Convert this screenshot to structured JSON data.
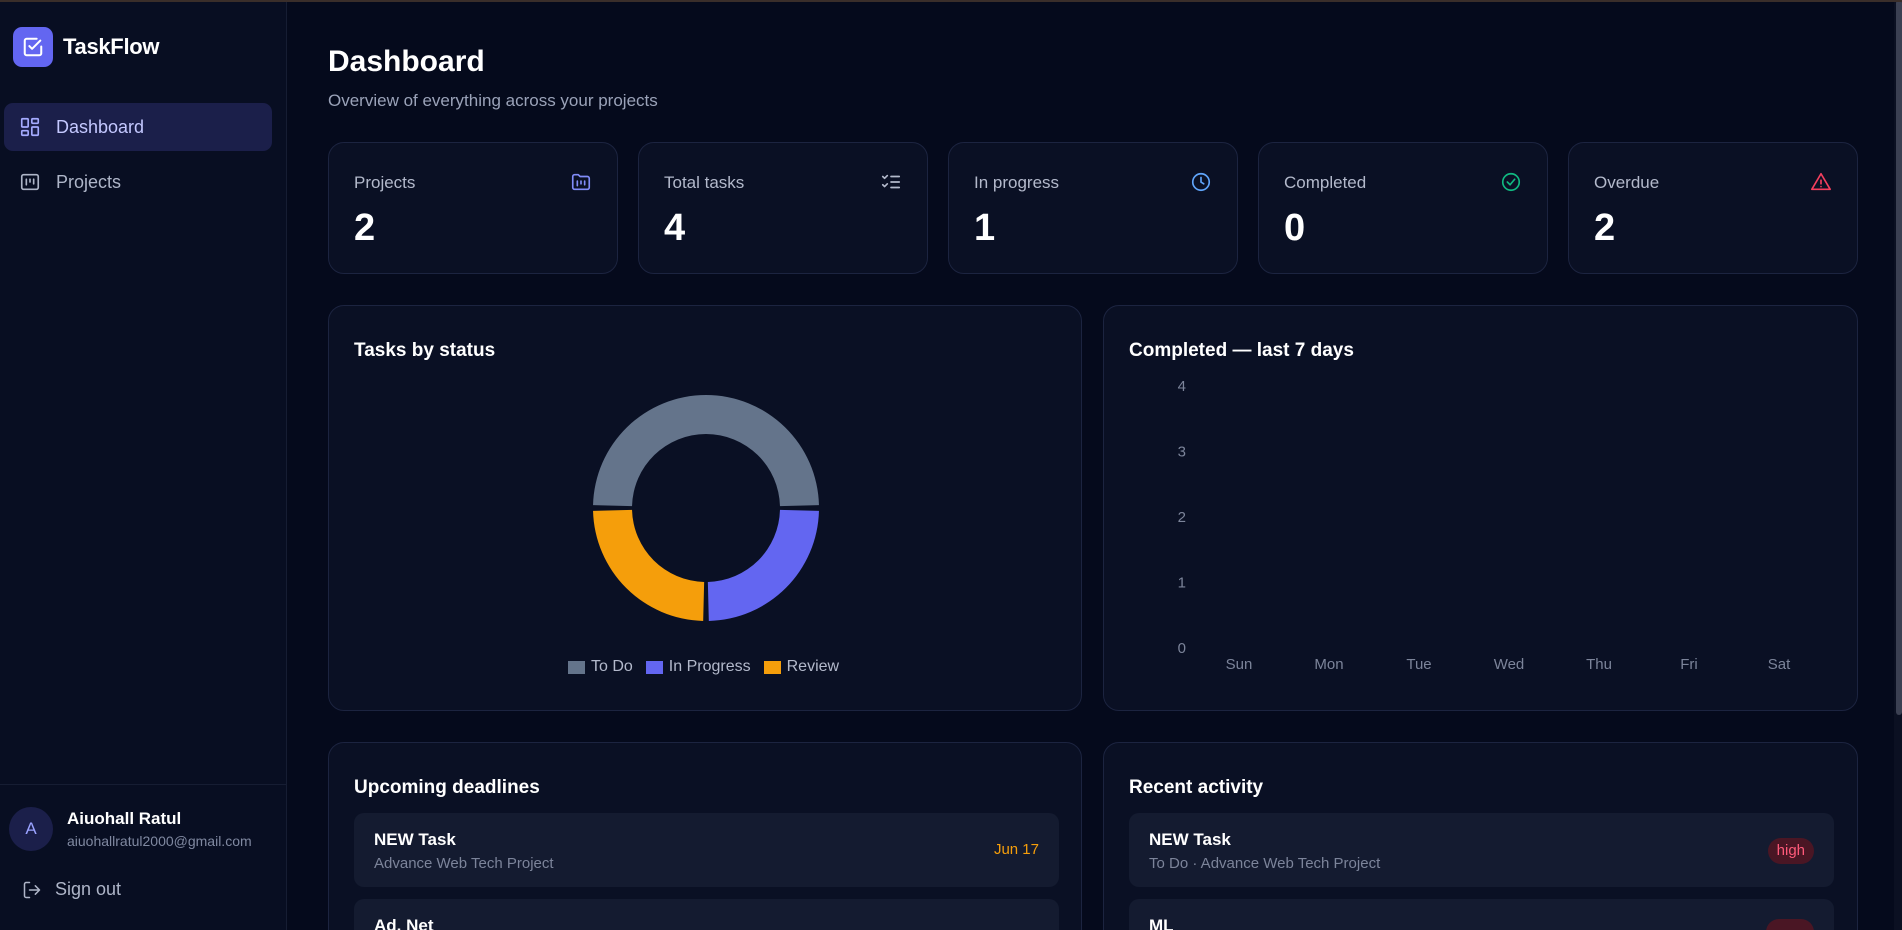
{
  "app": {
    "name": "TaskFlow"
  },
  "sidebar": {
    "items": [
      {
        "label": "Dashboard",
        "icon": "dashboard-grid-icon",
        "active": true
      },
      {
        "label": "Projects",
        "icon": "kanban-icon",
        "active": false
      }
    ],
    "user": {
      "initial": "A",
      "name": "Aiuohall Ratul",
      "email": "aiuohallratul2000@gmail.com"
    },
    "signout_label": "Sign out"
  },
  "page": {
    "title": "Dashboard",
    "subtitle": "Overview of everything across your projects"
  },
  "stats": [
    {
      "label": "Projects",
      "value": "2",
      "icon": "folder-kanban-icon",
      "color": "#818cf8"
    },
    {
      "label": "Total tasks",
      "value": "4",
      "icon": "list-checks-icon",
      "color": "#b3b9cb"
    },
    {
      "label": "In progress",
      "value": "1",
      "icon": "clock-icon",
      "color": "#60a5fa"
    },
    {
      "label": "Completed",
      "value": "0",
      "icon": "check-circle-icon",
      "color": "#10b981"
    },
    {
      "label": "Overdue",
      "value": "2",
      "icon": "alert-triangle-icon",
      "color": "#f43f5e"
    }
  ],
  "status_chart": {
    "title": "Tasks by status",
    "chart_data": {
      "type": "pie",
      "categories": [
        "To Do",
        "In Progress",
        "Review"
      ],
      "values": [
        2,
        1,
        1
      ],
      "colors": [
        "#64748b",
        "#6366f1",
        "#f59e0b"
      ],
      "legend": "bottom"
    }
  },
  "completed_chart": {
    "title": "Completed — last 7 days",
    "chart_data": {
      "type": "bar",
      "categories": [
        "Sun",
        "Mon",
        "Tue",
        "Wed",
        "Thu",
        "Fri",
        "Sat"
      ],
      "values": [
        0,
        0,
        0,
        0,
        0,
        0,
        0
      ],
      "yticks": [
        "0",
        "1",
        "2",
        "3",
        "4"
      ],
      "ylim": [
        0,
        4
      ],
      "grid": false
    }
  },
  "deadlines": {
    "title": "Upcoming deadlines",
    "items": [
      {
        "title": "NEW Task",
        "project": "Advance Web Tech Project",
        "date": "Jun 17"
      },
      {
        "title": "Ad. Net",
        "project": "",
        "date": ""
      }
    ]
  },
  "activity": {
    "title": "Recent activity",
    "items": [
      {
        "title": "NEW Task",
        "meta": "To Do · Advance Web Tech Project",
        "priority": "high"
      },
      {
        "title": "ML",
        "meta": "",
        "priority": ""
      }
    ]
  }
}
